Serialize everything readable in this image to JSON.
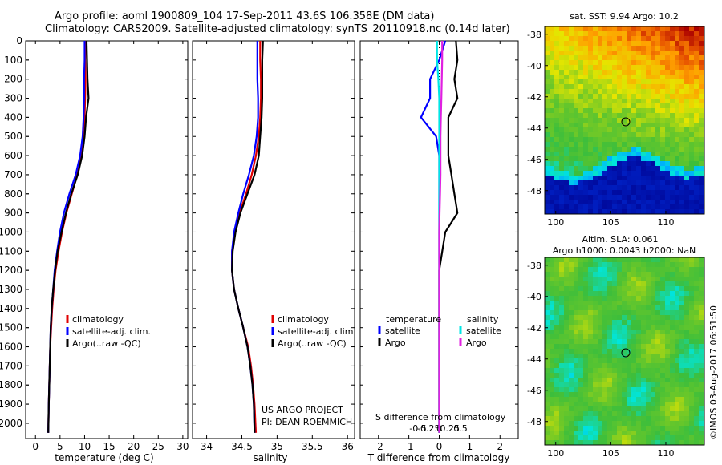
{
  "header": {
    "line1": "Argo profile: aoml 1900809_104 17-Sep-2011 43.6S 106.358E (DM data)",
    "line2": "Climatology: CARS2009. Satellite-adjusted climatology: synTS_20110918.nc (0.14d later)"
  },
  "colors": {
    "climatology": "#e00000",
    "satellite": "#0000ff",
    "argo": "#000000",
    "cyan": "#00e6e6",
    "magenta": "#e020e0"
  },
  "chart_data": [
    {
      "type": "line",
      "name": "temperature-profile",
      "xlabel": "temperature (deg C)",
      "ylabel": "depth",
      "xlim": [
        -2,
        31
      ],
      "ylim": [
        2080,
        0
      ],
      "xticks": [
        "0",
        "5",
        "10",
        "15",
        "20",
        "25",
        "30"
      ],
      "xtick_values": [
        0,
        5,
        10,
        15,
        20,
        25,
        30
      ],
      "yticks": [
        "0",
        "100",
        "200",
        "300",
        "400",
        "500",
        "600",
        "700",
        "800",
        "900",
        "1000",
        "1100",
        "1200",
        "1300",
        "1400",
        "1500",
        "1600",
        "1700",
        "1800",
        "1900",
        "2000"
      ],
      "ytick_values": [
        0,
        100,
        200,
        300,
        400,
        500,
        600,
        700,
        800,
        900,
        1000,
        1100,
        1200,
        1300,
        1400,
        1500,
        1600,
        1700,
        1800,
        1900,
        2000
      ],
      "legend": [
        "climatology",
        "satellite-adj. clim.",
        "Argo(..raw -QC)"
      ],
      "legend_position": "lower-right",
      "series": [
        {
          "name": "climatology",
          "color": "#e00000",
          "x": [
            10.2,
            10.1,
            10.2,
            10.1,
            10.0,
            9.7,
            9.2,
            8.5,
            7.4,
            6.3,
            5.4,
            4.7,
            4.1,
            3.7,
            3.4,
            3.2,
            3.0,
            2.9,
            2.8,
            2.7,
            2.6
          ],
          "y": [
            0,
            100,
            200,
            300,
            400,
            500,
            600,
            700,
            800,
            900,
            1000,
            1100,
            1200,
            1300,
            1400,
            1500,
            1600,
            1700,
            1800,
            1900,
            2050
          ]
        },
        {
          "name": "satellite-adj. clim.",
          "color": "#0000ff",
          "x": [
            10.0,
            10.0,
            9.9,
            9.9,
            9.8,
            9.6,
            9.1,
            8.2,
            6.9,
            5.8,
            5.0,
            4.4,
            3.9,
            3.6,
            3.3,
            3.1,
            3.0,
            2.9,
            2.8,
            2.7,
            2.6
          ],
          "y": [
            0,
            100,
            200,
            300,
            400,
            500,
            600,
            700,
            800,
            900,
            1000,
            1100,
            1200,
            1300,
            1400,
            1500,
            1600,
            1700,
            1800,
            1900,
            2050
          ]
        },
        {
          "name": "Argo(..raw -QC)",
          "color": "#000000",
          "x": [
            10.4,
            10.5,
            10.6,
            10.8,
            10.3,
            10.0,
            9.5,
            8.6,
            7.3,
            6.2,
            5.3,
            4.5,
            4.0,
            3.6,
            3.3,
            3.1,
            3.0,
            2.9,
            2.8,
            2.7,
            2.6
          ],
          "y": [
            0,
            100,
            200,
            300,
            400,
            500,
            600,
            700,
            800,
            900,
            1000,
            1100,
            1200,
            1300,
            1400,
            1500,
            1600,
            1700,
            1800,
            1900,
            2050
          ]
        }
      ]
    },
    {
      "type": "line",
      "name": "salinity-profile",
      "xlabel": "salinity",
      "xlim": [
        33.8,
        36.1
      ],
      "ylim": [
        2080,
        0
      ],
      "xticks": [
        "34",
        "34.5",
        "35",
        "35.5",
        "36"
      ],
      "xtick_values": [
        34,
        34.5,
        35,
        35.5,
        36
      ],
      "legend": [
        "climatology",
        "satellite-adj. clim.",
        "Argo(..raw -QC)"
      ],
      "legend_position": "lower-right",
      "annotation": [
        "US ARGO PROJECT",
        "PI: DEAN ROEMMICH"
      ],
      "series": [
        {
          "name": "climatology",
          "color": "#e00000",
          "x": [
            34.76,
            34.76,
            34.77,
            34.77,
            34.76,
            34.74,
            34.7,
            34.64,
            34.56,
            34.47,
            34.4,
            34.36,
            34.36,
            34.39,
            34.45,
            34.52,
            34.59,
            34.63,
            34.66,
            34.68,
            34.7
          ],
          "y": [
            0,
            100,
            200,
            300,
            400,
            500,
            600,
            700,
            800,
            900,
            1000,
            1100,
            1200,
            1300,
            1400,
            1500,
            1600,
            1700,
            1800,
            1900,
            2050
          ]
        },
        {
          "name": "satellite-adj. clim.",
          "color": "#0000ff",
          "x": [
            34.72,
            34.72,
            34.72,
            34.73,
            34.73,
            34.71,
            34.67,
            34.6,
            34.52,
            34.45,
            34.39,
            34.36,
            34.36,
            34.39,
            34.45,
            34.52,
            34.58,
            34.62,
            34.65,
            34.67,
            34.68
          ],
          "y": [
            0,
            100,
            200,
            300,
            400,
            500,
            600,
            700,
            800,
            900,
            1000,
            1100,
            1200,
            1300,
            1400,
            1500,
            1600,
            1700,
            1800,
            1900,
            2050
          ]
        },
        {
          "name": "Argo(..raw -QC)",
          "color": "#000000",
          "x": [
            34.8,
            34.79,
            34.79,
            34.79,
            34.78,
            34.76,
            34.74,
            34.68,
            34.58,
            34.48,
            34.41,
            34.37,
            34.36,
            34.39,
            34.45,
            34.52,
            34.58,
            34.62,
            34.65,
            34.67,
            34.68
          ],
          "y": [
            0,
            100,
            200,
            300,
            400,
            500,
            600,
            700,
            800,
            900,
            1000,
            1100,
            1200,
            1300,
            1400,
            1500,
            1600,
            1700,
            1800,
            1900,
            2050
          ]
        }
      ]
    },
    {
      "type": "line",
      "name": "difference-profile",
      "xlabel": "T difference from climatology",
      "xlabel_top": "S difference from climatology",
      "xlim": [
        -2.6,
        2.6
      ],
      "ylim": [
        2080,
        0
      ],
      "xticks": [
        "-2",
        "-1",
        "0",
        "1",
        "2"
      ],
      "xtick_values": [
        -2,
        -1,
        0,
        1,
        2
      ],
      "sticks": [
        "-0.5",
        "-0.25",
        "0",
        "0.25",
        "0.5"
      ],
      "stick_values": [
        -0.5,
        -0.25,
        0,
        0.25,
        0.5
      ],
      "legend_headers": [
        "temperature",
        "salinity"
      ],
      "legend_left": [
        "satellite",
        "Argo"
      ],
      "legend_right": [
        "satellite",
        "Argo"
      ],
      "series": [
        {
          "name": "T satellite",
          "color": "#0000ff",
          "x": [
            0.2,
            0.0,
            -0.3,
            -0.3,
            -0.6,
            -0.1,
            0.0,
            0.0,
            0.0,
            0.0,
            0.0,
            0.0,
            0.0,
            0.0,
            0.0,
            0.0,
            0.0,
            0.0,
            0.0,
            0.0
          ],
          "y": [
            0,
            100,
            200,
            300,
            400,
            500,
            600,
            700,
            800,
            900,
            1000,
            1100,
            1200,
            1300,
            1400,
            1500,
            1600,
            1700,
            1800,
            2050
          ]
        },
        {
          "name": "T Argo",
          "color": "#000000",
          "x": [
            0.55,
            0.6,
            0.5,
            0.6,
            0.3,
            0.3,
            0.3,
            0.4,
            0.5,
            0.6,
            0.2,
            0.1,
            0.0,
            0.0,
            0.0,
            0.0,
            0.0,
            0.0,
            0.0,
            0.0
          ],
          "y": [
            0,
            100,
            200,
            300,
            400,
            500,
            600,
            700,
            800,
            900,
            1000,
            1100,
            1200,
            1300,
            1400,
            1500,
            1600,
            1700,
            1800,
            2050
          ]
        },
        {
          "name": "S satellite",
          "color": "#00e6e6",
          "x": [
            -0.05,
            -0.05,
            -0.02,
            0.0,
            0.0,
            0.0,
            0.0,
            0.0,
            0.0,
            0.0,
            0.0,
            0.0,
            0.0,
            0.0,
            0.0,
            0.0,
            0.0,
            0.0,
            0.0,
            0.0
          ],
          "y": [
            0,
            100,
            200,
            300,
            400,
            500,
            600,
            700,
            800,
            900,
            1000,
            1100,
            1200,
            1300,
            1400,
            1500,
            1600,
            1700,
            1800,
            2050
          ]
        },
        {
          "name": "S Argo",
          "color": "#e020e0",
          "x": [
            0.07,
            0.07,
            0.06,
            0.05,
            0.04,
            0.03,
            0.03,
            0.03,
            0.02,
            0.01,
            0.0,
            0.0,
            0.0,
            0.0,
            0.0,
            0.0,
            0.0,
            0.0,
            0.0,
            0.0
          ],
          "y": [
            0,
            100,
            200,
            300,
            400,
            500,
            600,
            700,
            800,
            900,
            1000,
            1100,
            1200,
            1300,
            1400,
            1500,
            1600,
            1700,
            1800,
            2050
          ]
        }
      ]
    },
    {
      "type": "heatmap",
      "name": "sst-map",
      "title": "sat. SST: 9.94  Argo: 10.2",
      "xlim": [
        99,
        113.5
      ],
      "ylim": [
        -49.5,
        -37.5
      ],
      "xticks": [
        "100",
        "105",
        "110"
      ],
      "xtick_values": [
        100,
        105,
        110
      ],
      "yticks": [
        "-38",
        "-40",
        "-42",
        "-44",
        "-46",
        "-48"
      ],
      "ytick_values": [
        -38,
        -40,
        -42,
        -44,
        -46,
        -48
      ],
      "marker": {
        "lon": 106.358,
        "lat": -43.6
      }
    },
    {
      "type": "heatmap",
      "name": "sla-map",
      "title_line1": "Altim. SLA: 0.061",
      "title_line2": "Argo h1000: 0.0043 h2000: NaN",
      "xlim": [
        99,
        113.5
      ],
      "ylim": [
        -49.5,
        -37.5
      ],
      "xticks": [
        "100",
        "105",
        "110"
      ],
      "xtick_values": [
        100,
        105,
        110
      ],
      "yticks": [
        "-38",
        "-40",
        "-42",
        "-44",
        "-46",
        "-48"
      ],
      "ytick_values": [
        -38,
        -40,
        -42,
        -44,
        -46,
        -48
      ],
      "marker": {
        "lon": 106.358,
        "lat": -43.6
      }
    }
  ],
  "footer": {
    "stamp": "©IMOS 03-Aug-2017 06:51:50"
  }
}
